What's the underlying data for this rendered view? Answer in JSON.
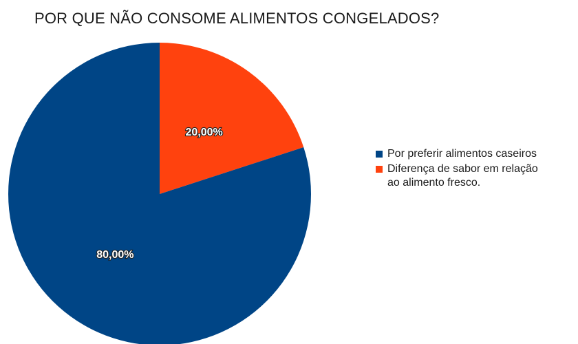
{
  "chart_data": {
    "type": "pie",
    "title": "POR QUE NÃO CONSOME ALIMENTOS CONGELADOS?",
    "legend_position": "right",
    "slices": [
      {
        "label": "Por preferir alimentos caseiros",
        "value": 80.0,
        "value_label": "80,00%",
        "color": "#004586"
      },
      {
        "label": "Diferença de sabor em relação\nao alimento fresco.",
        "value": 20.0,
        "value_label": "20,00%",
        "color": "#ff420e"
      }
    ]
  }
}
